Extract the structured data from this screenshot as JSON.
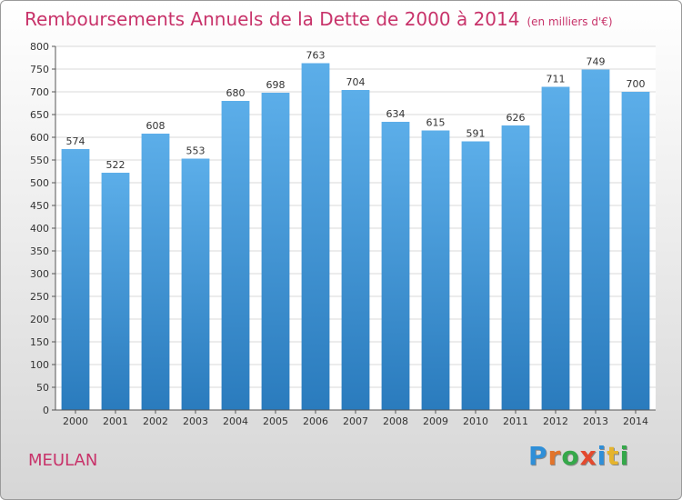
{
  "title": "Remboursements Annuels de la Dette de 2000 à 2014",
  "unit_note": "(en milliers d'€)",
  "commune": "MEULAN",
  "brand": {
    "text": "Proxiti",
    "letters": [
      {
        "ch": "P",
        "color": "#2f8fd8"
      },
      {
        "ch": "r",
        "color": "#e2742a"
      },
      {
        "ch": "o",
        "color": "#35a84a"
      },
      {
        "ch": "x",
        "color": "#e34a2f"
      },
      {
        "ch": "i",
        "color": "#2f8fd8"
      },
      {
        "ch": "t",
        "color": "#e5b42d"
      },
      {
        "ch": "i",
        "color": "#35a84a"
      }
    ]
  },
  "colors": {
    "title": "#c8336a",
    "bar_top": "#5caee9",
    "bar_bottom": "#2a7bbd",
    "grid": "#d8d8d8"
  },
  "chart_data": {
    "type": "bar",
    "title": "Remboursements Annuels de la Dette de 2000 à 2014",
    "xlabel": "",
    "ylabel": "",
    "ylim": [
      0,
      800
    ],
    "yticks": [
      0,
      50,
      100,
      150,
      200,
      250,
      300,
      350,
      400,
      450,
      500,
      550,
      600,
      650,
      700,
      750,
      800
    ],
    "grid": true,
    "categories": [
      "2000",
      "2001",
      "2002",
      "2003",
      "2004",
      "2005",
      "2006",
      "2007",
      "2008",
      "2009",
      "2010",
      "2011",
      "2012",
      "2013",
      "2014"
    ],
    "values": [
      574,
      522,
      608,
      553,
      680,
      698,
      763,
      704,
      634,
      615,
      591,
      626,
      711,
      749,
      700
    ]
  }
}
